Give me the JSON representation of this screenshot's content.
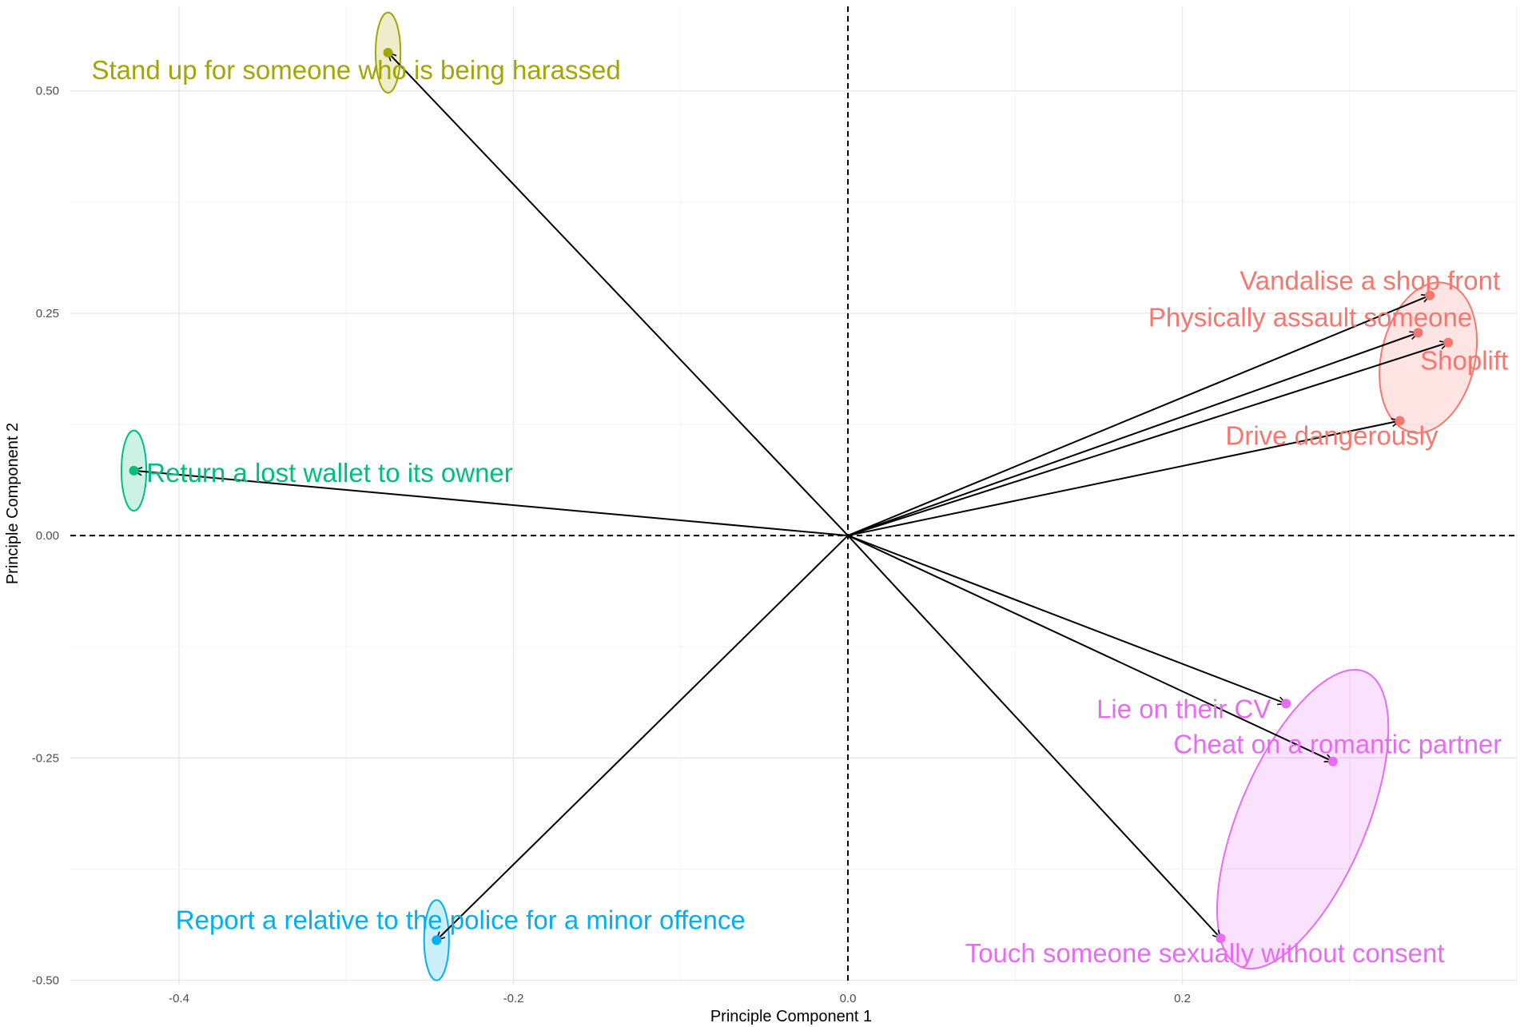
{
  "chart_data": {
    "type": "scatter",
    "title": "",
    "xlabel": "Principle Component 1",
    "ylabel": "Principle Component 2",
    "xlim": [
      -0.465,
      0.4
    ],
    "ylim": [
      -0.505,
      0.595
    ],
    "x_ticks": [
      -0.4,
      -0.2,
      0.0,
      0.2
    ],
    "x_tick_labels": [
      "-0.4",
      "-0.2",
      "0.0",
      "0.2"
    ],
    "y_ticks": [
      -0.5,
      -0.25,
      0.0,
      0.25,
      0.5
    ],
    "y_tick_labels": [
      "-0.50",
      "-0.25",
      "0.00",
      "0.25",
      "0.50"
    ],
    "grid": true,
    "reference_lines": [
      0,
      0
    ],
    "arrows_from_origin": true,
    "groups": [
      {
        "color": "#f8766d",
        "ellipse": {
          "cx": 0.347,
          "cy": 0.2,
          "rx": 0.086,
          "ry": 0.028,
          "angle": -77
        },
        "points": [
          {
            "label": "Vandalise a shop front",
            "x": 0.348,
            "y": 0.27
          },
          {
            "label": "Physically assault someone",
            "x": 0.341,
            "y": 0.228
          },
          {
            "label": "Shoplift",
            "x": 0.359,
            "y": 0.217
          },
          {
            "label": "Drive dangerously",
            "x": 0.33,
            "y": 0.129
          }
        ]
      },
      {
        "color": "#e76bf3",
        "ellipse": {
          "cx": 0.272,
          "cy": -0.319,
          "rx": 0.18,
          "ry": 0.038,
          "angle": -67
        },
        "points": [
          {
            "label": "Lie on their CV",
            "x": 0.262,
            "y": -0.189
          },
          {
            "label": "Cheat on a romantic partner",
            "x": 0.29,
            "y": -0.254
          },
          {
            "label": "Touch someone sexually without consent",
            "x": 0.223,
            "y": -0.453
          }
        ]
      },
      {
        "color": "#a3a500",
        "ellipse": {
          "cx": -0.275,
          "cy": 0.543,
          "rx": 0.014,
          "ry": 0.024,
          "angle": 0
        },
        "points": [
          {
            "label": "Stand up for someone who is being harassed",
            "x": -0.275,
            "y": 0.543
          }
        ]
      },
      {
        "color": "#00bf7d",
        "ellipse": {
          "cx": -0.427,
          "cy": 0.073,
          "rx": 0.014,
          "ry": 0.024,
          "angle": 0
        },
        "points": [
          {
            "label": "Return a lost wallet to its owner",
            "x": -0.427,
            "y": 0.073
          }
        ]
      },
      {
        "color": "#00b0f6",
        "ellipse": {
          "cx": -0.246,
          "cy": -0.455,
          "rx": 0.014,
          "ry": 0.024,
          "angle": 0
        },
        "points": [
          {
            "label": "Report a relative to the police for a minor offence",
            "x": -0.246,
            "y": -0.455
          }
        ]
      }
    ]
  }
}
